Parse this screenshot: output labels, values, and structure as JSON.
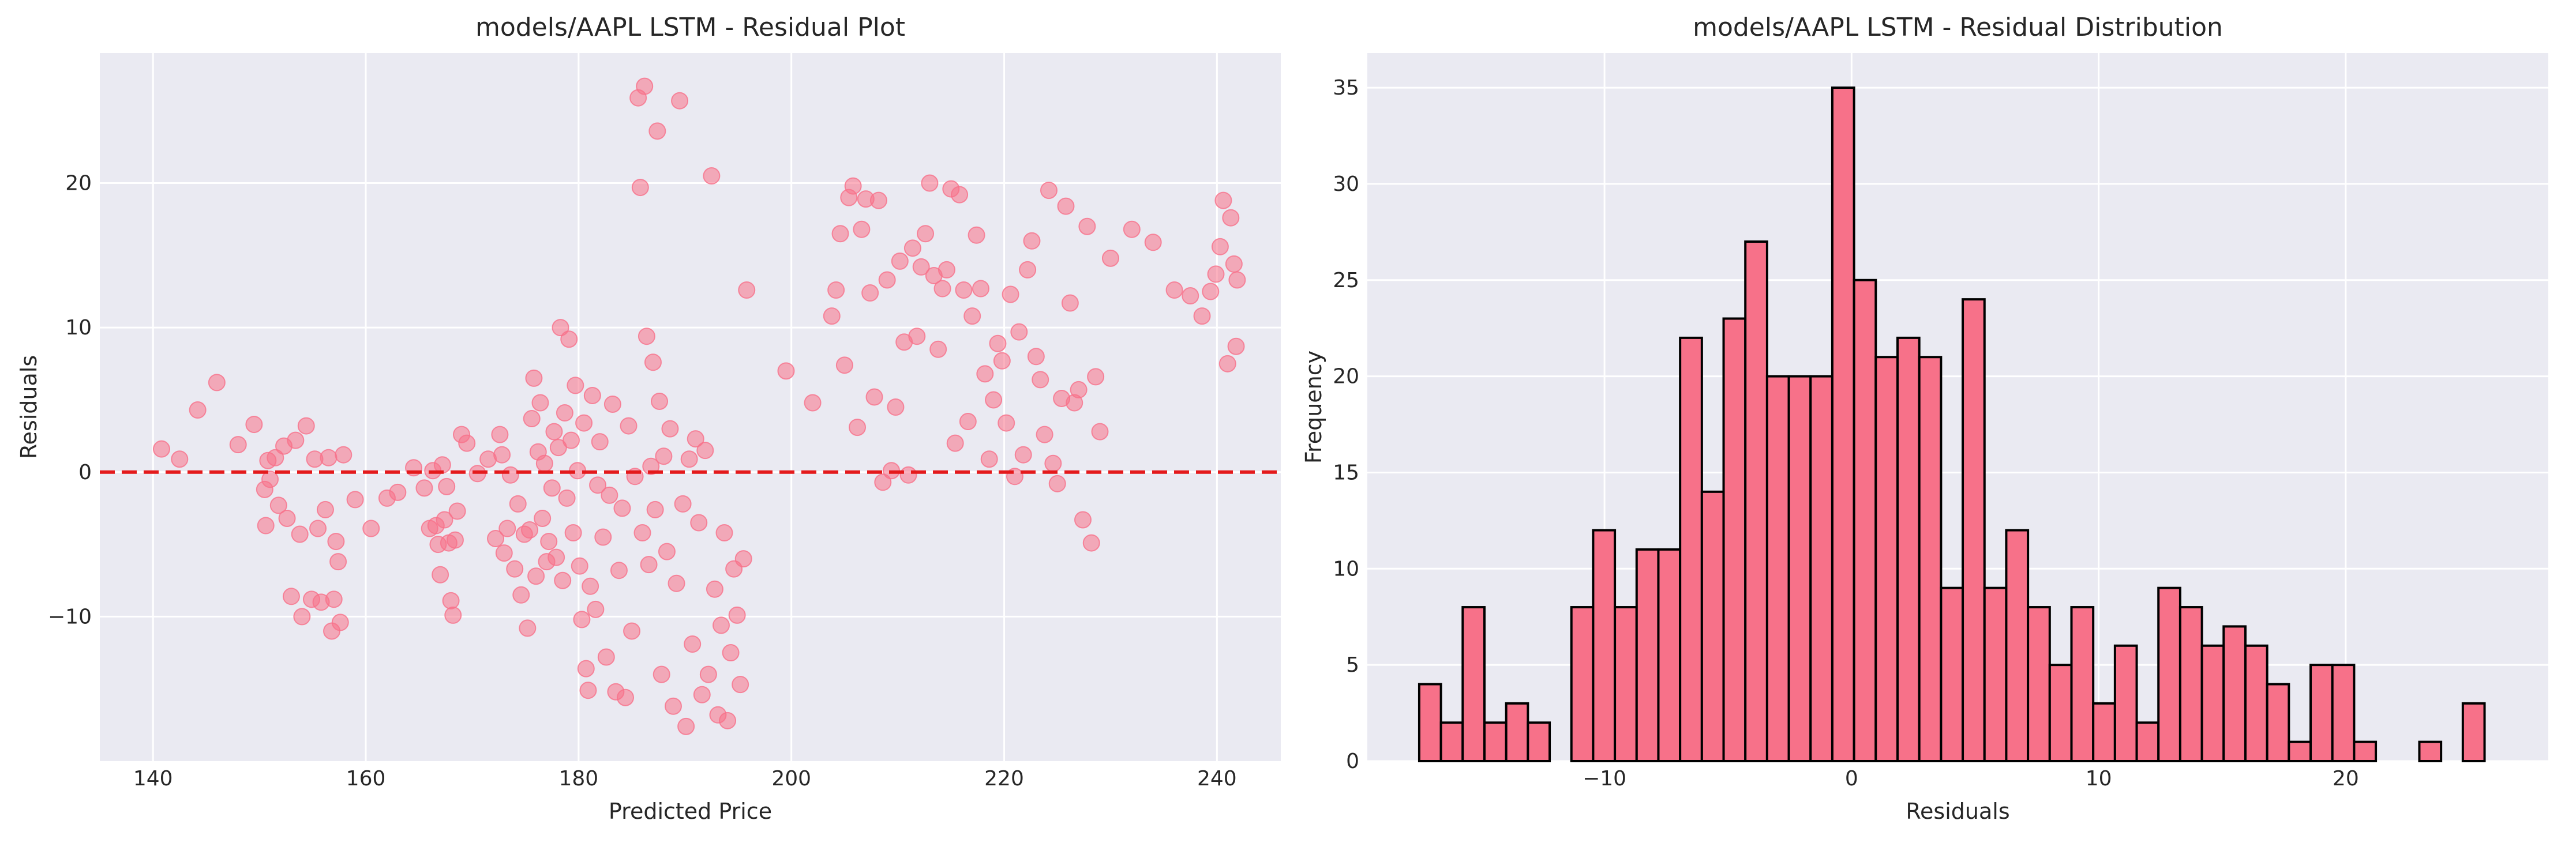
{
  "colors": {
    "accent": "#f77189",
    "reference_line": "#e41a1c",
    "axes_background": "#eaeaf2",
    "bar_edge": "#000000"
  },
  "chart_data": [
    {
      "type": "scatter",
      "title": "models/AAPL LSTM - Residual Plot",
      "xlabel": "Predicted Price",
      "ylabel": "Residuals",
      "xlim": [
        135,
        246
      ],
      "ylim": [
        -20,
        29
      ],
      "xticks": [
        140,
        160,
        180,
        200,
        220,
        240
      ],
      "xtick_labels": [
        "140",
        "160",
        "180",
        "200",
        "220",
        "240"
      ],
      "yticks": [
        -10,
        0,
        10,
        20
      ],
      "ytick_labels": [
        "−10",
        "0",
        "10",
        "20"
      ],
      "grid": true,
      "reference_line": {
        "y": 0,
        "style": "dashed"
      },
      "points": [
        [
          140.8,
          1.6
        ],
        [
          142.5,
          0.9
        ],
        [
          144.2,
          4.3
        ],
        [
          146,
          6.2
        ],
        [
          148,
          1.9
        ],
        [
          149.5,
          3.3
        ],
        [
          150.5,
          -1.2
        ],
        [
          150.8,
          0.8
        ],
        [
          150.6,
          -3.7
        ],
        [
          151,
          -0.5
        ],
        [
          151.5,
          1.0
        ],
        [
          151.8,
          -2.3
        ],
        [
          152.3,
          1.8
        ],
        [
          152.6,
          -3.2
        ],
        [
          153,
          -8.6
        ],
        [
          153.4,
          2.2
        ],
        [
          153.8,
          -4.3
        ],
        [
          154,
          -10
        ],
        [
          154.4,
          3.2
        ],
        [
          154.9,
          -8.8
        ],
        [
          155.2,
          0.9
        ],
        [
          155.5,
          -3.9
        ],
        [
          155.8,
          -9.0
        ],
        [
          156.2,
          -2.6
        ],
        [
          156.5,
          1.0
        ],
        [
          156.8,
          -11
        ],
        [
          157,
          -8.8
        ],
        [
          157.2,
          -4.8
        ],
        [
          157.4,
          -6.2
        ],
        [
          157.6,
          -10.4
        ],
        [
          157.9,
          1.2
        ],
        [
          159,
          -1.9
        ],
        [
          160.5,
          -3.9
        ],
        [
          162,
          -1.8
        ],
        [
          163,
          -1.4
        ],
        [
          164.5,
          0.3
        ],
        [
          165.5,
          -1.1
        ],
        [
          166,
          -3.9
        ],
        [
          166.3,
          0.1
        ],
        [
          166.6,
          -3.7
        ],
        [
          166.8,
          -5.0
        ],
        [
          167,
          -7.1
        ],
        [
          167.2,
          0.5
        ],
        [
          167.4,
          -3.3
        ],
        [
          167.6,
          -1.0
        ],
        [
          167.8,
          -4.9
        ],
        [
          168,
          -8.9
        ],
        [
          168.2,
          -9.9
        ],
        [
          168.4,
          -4.7
        ],
        [
          168.6,
          -2.7
        ],
        [
          169,
          2.6
        ],
        [
          169.5,
          2.0
        ],
        [
          170.5,
          -0.1
        ],
        [
          171.5,
          0.9
        ],
        [
          172.2,
          -4.6
        ],
        [
          172.6,
          2.6
        ],
        [
          172.8,
          1.2
        ],
        [
          173,
          -5.6
        ],
        [
          173.3,
          -3.9
        ],
        [
          173.6,
          -0.2
        ],
        [
          174,
          -6.7
        ],
        [
          174.3,
          -2.2
        ],
        [
          174.6,
          -8.5
        ],
        [
          174.9,
          -4.3
        ],
        [
          175.2,
          -10.8
        ],
        [
          175.4,
          -4.0
        ],
        [
          175.6,
          3.7
        ],
        [
          175.8,
          6.5
        ],
        [
          176,
          -7.2
        ],
        [
          176.2,
          1.4
        ],
        [
          176.4,
          4.8
        ],
        [
          176.6,
          -3.2
        ],
        [
          176.8,
          0.6
        ],
        [
          177,
          -6.2
        ],
        [
          177.2,
          -4.8
        ],
        [
          177.5,
          -1.1
        ],
        [
          177.7,
          2.8
        ],
        [
          177.9,
          -5.9
        ],
        [
          178.1,
          1.7
        ],
        [
          178.3,
          10
        ],
        [
          178.5,
          -7.5
        ],
        [
          178.7,
          4.1
        ],
        [
          178.9,
          -1.8
        ],
        [
          179.1,
          9.2
        ],
        [
          179.3,
          2.2
        ],
        [
          179.5,
          -4.2
        ],
        [
          179.7,
          6.0
        ],
        [
          179.9,
          0.1
        ],
        [
          180.1,
          -6.5
        ],
        [
          180.3,
          -10.2
        ],
        [
          180.5,
          3.4
        ],
        [
          180.7,
          -13.6
        ],
        [
          180.9,
          -15.1
        ],
        [
          181.1,
          -7.9
        ],
        [
          181.3,
          5.3
        ],
        [
          181.6,
          -9.5
        ],
        [
          181.8,
          -0.9
        ],
        [
          182,
          2.1
        ],
        [
          182.3,
          -4.5
        ],
        [
          182.6,
          -12.8
        ],
        [
          182.9,
          -1.6
        ],
        [
          183.2,
          4.7
        ],
        [
          183.5,
          -15.2
        ],
        [
          183.8,
          -6.8
        ],
        [
          184.1,
          -2.5
        ],
        [
          184.4,
          -15.6
        ],
        [
          184.7,
          3.2
        ],
        [
          185,
          -11.0
        ],
        [
          185.3,
          -0.3
        ],
        [
          185.6,
          25.9
        ],
        [
          185.8,
          19.7
        ],
        [
          186,
          -4.2
        ],
        [
          186.2,
          26.7
        ],
        [
          186.4,
          9.4
        ],
        [
          186.6,
          -6.4
        ],
        [
          186.8,
          0.4
        ],
        [
          187,
          7.6
        ],
        [
          187.2,
          -2.6
        ],
        [
          187.4,
          23.6
        ],
        [
          187.6,
          4.9
        ],
        [
          187.8,
          -14
        ],
        [
          188,
          1.1
        ],
        [
          188.3,
          -5.5
        ],
        [
          188.6,
          3.0
        ],
        [
          188.9,
          -16.2
        ],
        [
          189.2,
          -7.7
        ],
        [
          189.5,
          25.7
        ],
        [
          189.8,
          -2.2
        ],
        [
          190.1,
          -17.6
        ],
        [
          190.4,
          0.9
        ],
        [
          190.7,
          -11.9
        ],
        [
          191,
          2.3
        ],
        [
          191.3,
          -3.5
        ],
        [
          191.6,
          -15.4
        ],
        [
          191.9,
          1.5
        ],
        [
          192.2,
          -14
        ],
        [
          192.5,
          20.5
        ],
        [
          192.8,
          -8.1
        ],
        [
          193.1,
          -16.8
        ],
        [
          193.4,
          -10.6
        ],
        [
          193.7,
          -4.2
        ],
        [
          194,
          -17.2
        ],
        [
          194.3,
          -12.5
        ],
        [
          194.6,
          -6.7
        ],
        [
          194.9,
          -9.9
        ],
        [
          195.2,
          -14.7
        ],
        [
          195.5,
          -6.0
        ],
        [
          195.8,
          12.6
        ],
        [
          199.5,
          7.0
        ],
        [
          202,
          4.8
        ],
        [
          203.8,
          10.8
        ],
        [
          204.2,
          12.6
        ],
        [
          204.6,
          16.5
        ],
        [
          205,
          7.4
        ],
        [
          205.4,
          19.0
        ],
        [
          205.8,
          19.8
        ],
        [
          206.2,
          3.1
        ],
        [
          206.6,
          16.8
        ],
        [
          207,
          18.9
        ],
        [
          207.4,
          12.4
        ],
        [
          207.8,
          5.2
        ],
        [
          208.2,
          18.8
        ],
        [
          208.6,
          -0.7
        ],
        [
          209,
          13.3
        ],
        [
          209.4,
          0.1
        ],
        [
          209.8,
          4.5
        ],
        [
          210.2,
          14.6
        ],
        [
          210.6,
          9.0
        ],
        [
          211,
          -0.2
        ],
        [
          211.4,
          15.5
        ],
        [
          211.8,
          9.4
        ],
        [
          212.2,
          14.2
        ],
        [
          212.6,
          16.5
        ],
        [
          213,
          20.0
        ],
        [
          213.4,
          13.6
        ],
        [
          213.8,
          8.5
        ],
        [
          214.2,
          12.7
        ],
        [
          214.6,
          14.0
        ],
        [
          215,
          19.6
        ],
        [
          215.4,
          2.0
        ],
        [
          215.8,
          19.2
        ],
        [
          216.2,
          12.6
        ],
        [
          216.6,
          3.5
        ],
        [
          217,
          10.8
        ],
        [
          217.4,
          16.4
        ],
        [
          217.8,
          12.7
        ],
        [
          218.2,
          6.8
        ],
        [
          218.6,
          0.9
        ],
        [
          219,
          5.0
        ],
        [
          219.4,
          8.9
        ],
        [
          219.8,
          7.7
        ],
        [
          220.2,
          3.4
        ],
        [
          220.6,
          12.3
        ],
        [
          221,
          -0.3
        ],
        [
          221.4,
          9.7
        ],
        [
          221.8,
          1.2
        ],
        [
          222.2,
          14.0
        ],
        [
          222.6,
          16.0
        ],
        [
          223,
          8.0
        ],
        [
          223.4,
          6.4
        ],
        [
          223.8,
          2.6
        ],
        [
          224.2,
          19.5
        ],
        [
          224.6,
          0.6
        ],
        [
          225,
          -0.8
        ],
        [
          225.4,
          5.1
        ],
        [
          225.8,
          18.4
        ],
        [
          226.2,
          11.7
        ],
        [
          226.6,
          4.8
        ],
        [
          227,
          5.7
        ],
        [
          227.4,
          -3.3
        ],
        [
          227.8,
          17.0
        ],
        [
          228.2,
          -4.9
        ],
        [
          228.6,
          6.6
        ],
        [
          229,
          2.8
        ],
        [
          230,
          14.8
        ],
        [
          232,
          16.8
        ],
        [
          234,
          15.9
        ],
        [
          236,
          12.6
        ],
        [
          237.5,
          12.2
        ],
        [
          238.6,
          10.8
        ],
        [
          239.4,
          12.5
        ],
        [
          239.9,
          13.7
        ],
        [
          240.3,
          15.6
        ],
        [
          240.6,
          18.8
        ],
        [
          241,
          7.5
        ],
        [
          241.3,
          17.6
        ],
        [
          241.6,
          14.4
        ],
        [
          241.8,
          8.7
        ],
        [
          241.9,
          13.3
        ]
      ]
    },
    {
      "type": "bar",
      "subtype": "histogram",
      "title": "models/AAPL LSTM - Residual Distribution",
      "xlabel": "Residuals",
      "ylabel": "Frequency",
      "xlim": [
        -19.6,
        28.2
      ],
      "ylim": [
        0,
        36.8
      ],
      "bin_start": -17.5,
      "bin_width": 0.88,
      "values": [
        4,
        2,
        8,
        2,
        3,
        2,
        0,
        8,
        12,
        8,
        11,
        11,
        22,
        14,
        23,
        27,
        20,
        20,
        20,
        35,
        25,
        21,
        22,
        21,
        9,
        24,
        9,
        12,
        8,
        5,
        8,
        3,
        6,
        2,
        9,
        8,
        6,
        7,
        6,
        4,
        1,
        5,
        5,
        1,
        0,
        0,
        1,
        0,
        3
      ],
      "xticks": [
        -10,
        0,
        10,
        20
      ],
      "xtick_labels": [
        "−10",
        "0",
        "10",
        "20"
      ],
      "yticks": [
        0,
        5,
        10,
        15,
        20,
        25,
        30,
        35
      ],
      "ytick_labels": [
        "0",
        "5",
        "10",
        "15",
        "20",
        "25",
        "30",
        "35"
      ],
      "grid": true
    }
  ]
}
